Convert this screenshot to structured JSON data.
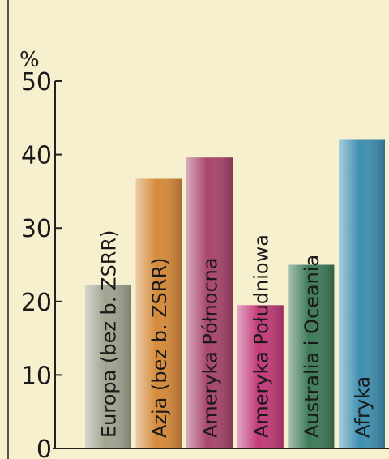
{
  "chart_data": {
    "type": "bar",
    "ylabel": "%",
    "ylim": [
      0,
      50
    ],
    "yticks": [
      0,
      10,
      20,
      30,
      40,
      50
    ],
    "grid": false,
    "categories": [
      "Europa (bez b. ZSRR)",
      "Azja (bez b. ZSRR)",
      "Ameryka Północna",
      "Ameryka Południowa",
      "Australia i Oceania",
      "Afryka"
    ],
    "values": [
      22.3,
      36.7,
      39.6,
      19.5,
      25,
      42
    ],
    "colors": [
      "#9ea48f",
      "#d58a3a",
      "#a8456d",
      "#c23b7a",
      "#3f7a58",
      "#3f8fb0"
    ]
  }
}
